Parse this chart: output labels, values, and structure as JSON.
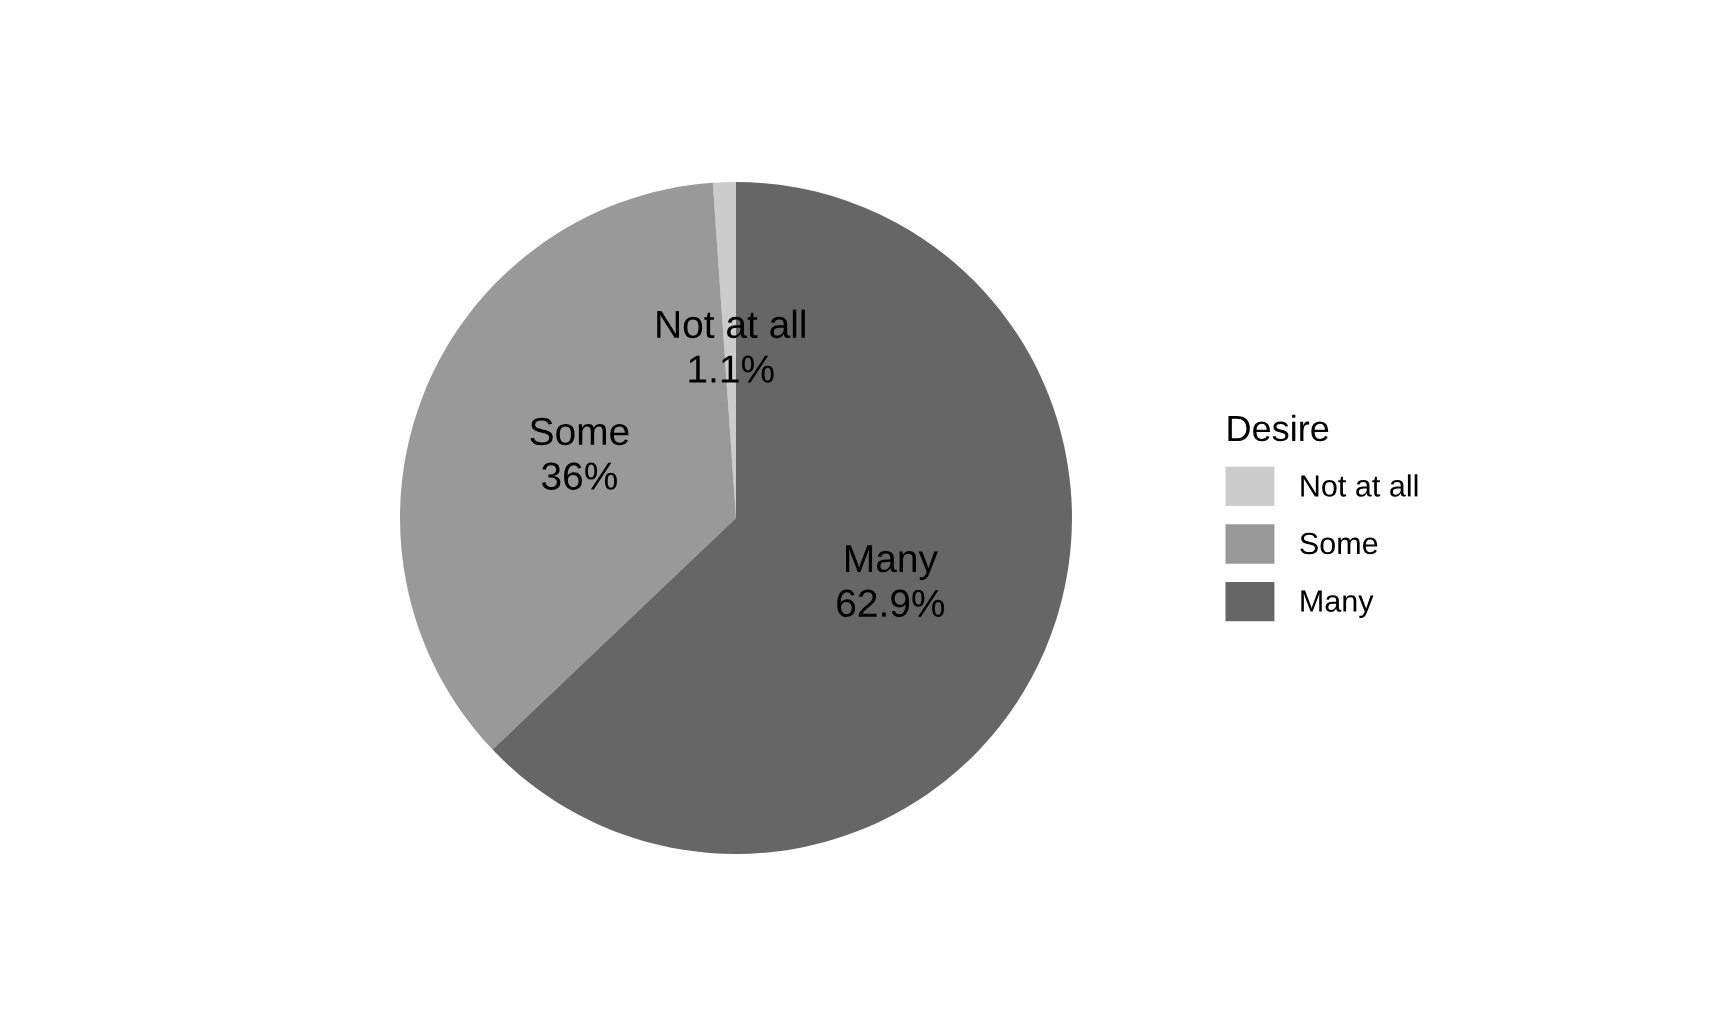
{
  "chart_data": {
    "type": "pie",
    "categories": [
      "Not at all",
      "Some",
      "Many"
    ],
    "values": [
      1.1,
      36,
      62.9
    ],
    "colors": [
      "#cccccc",
      "#999999",
      "#666666"
    ],
    "value_labels": [
      "1.1%",
      "36%",
      "62.9%"
    ],
    "legend_title": "Desire",
    "legend": "right"
  }
}
